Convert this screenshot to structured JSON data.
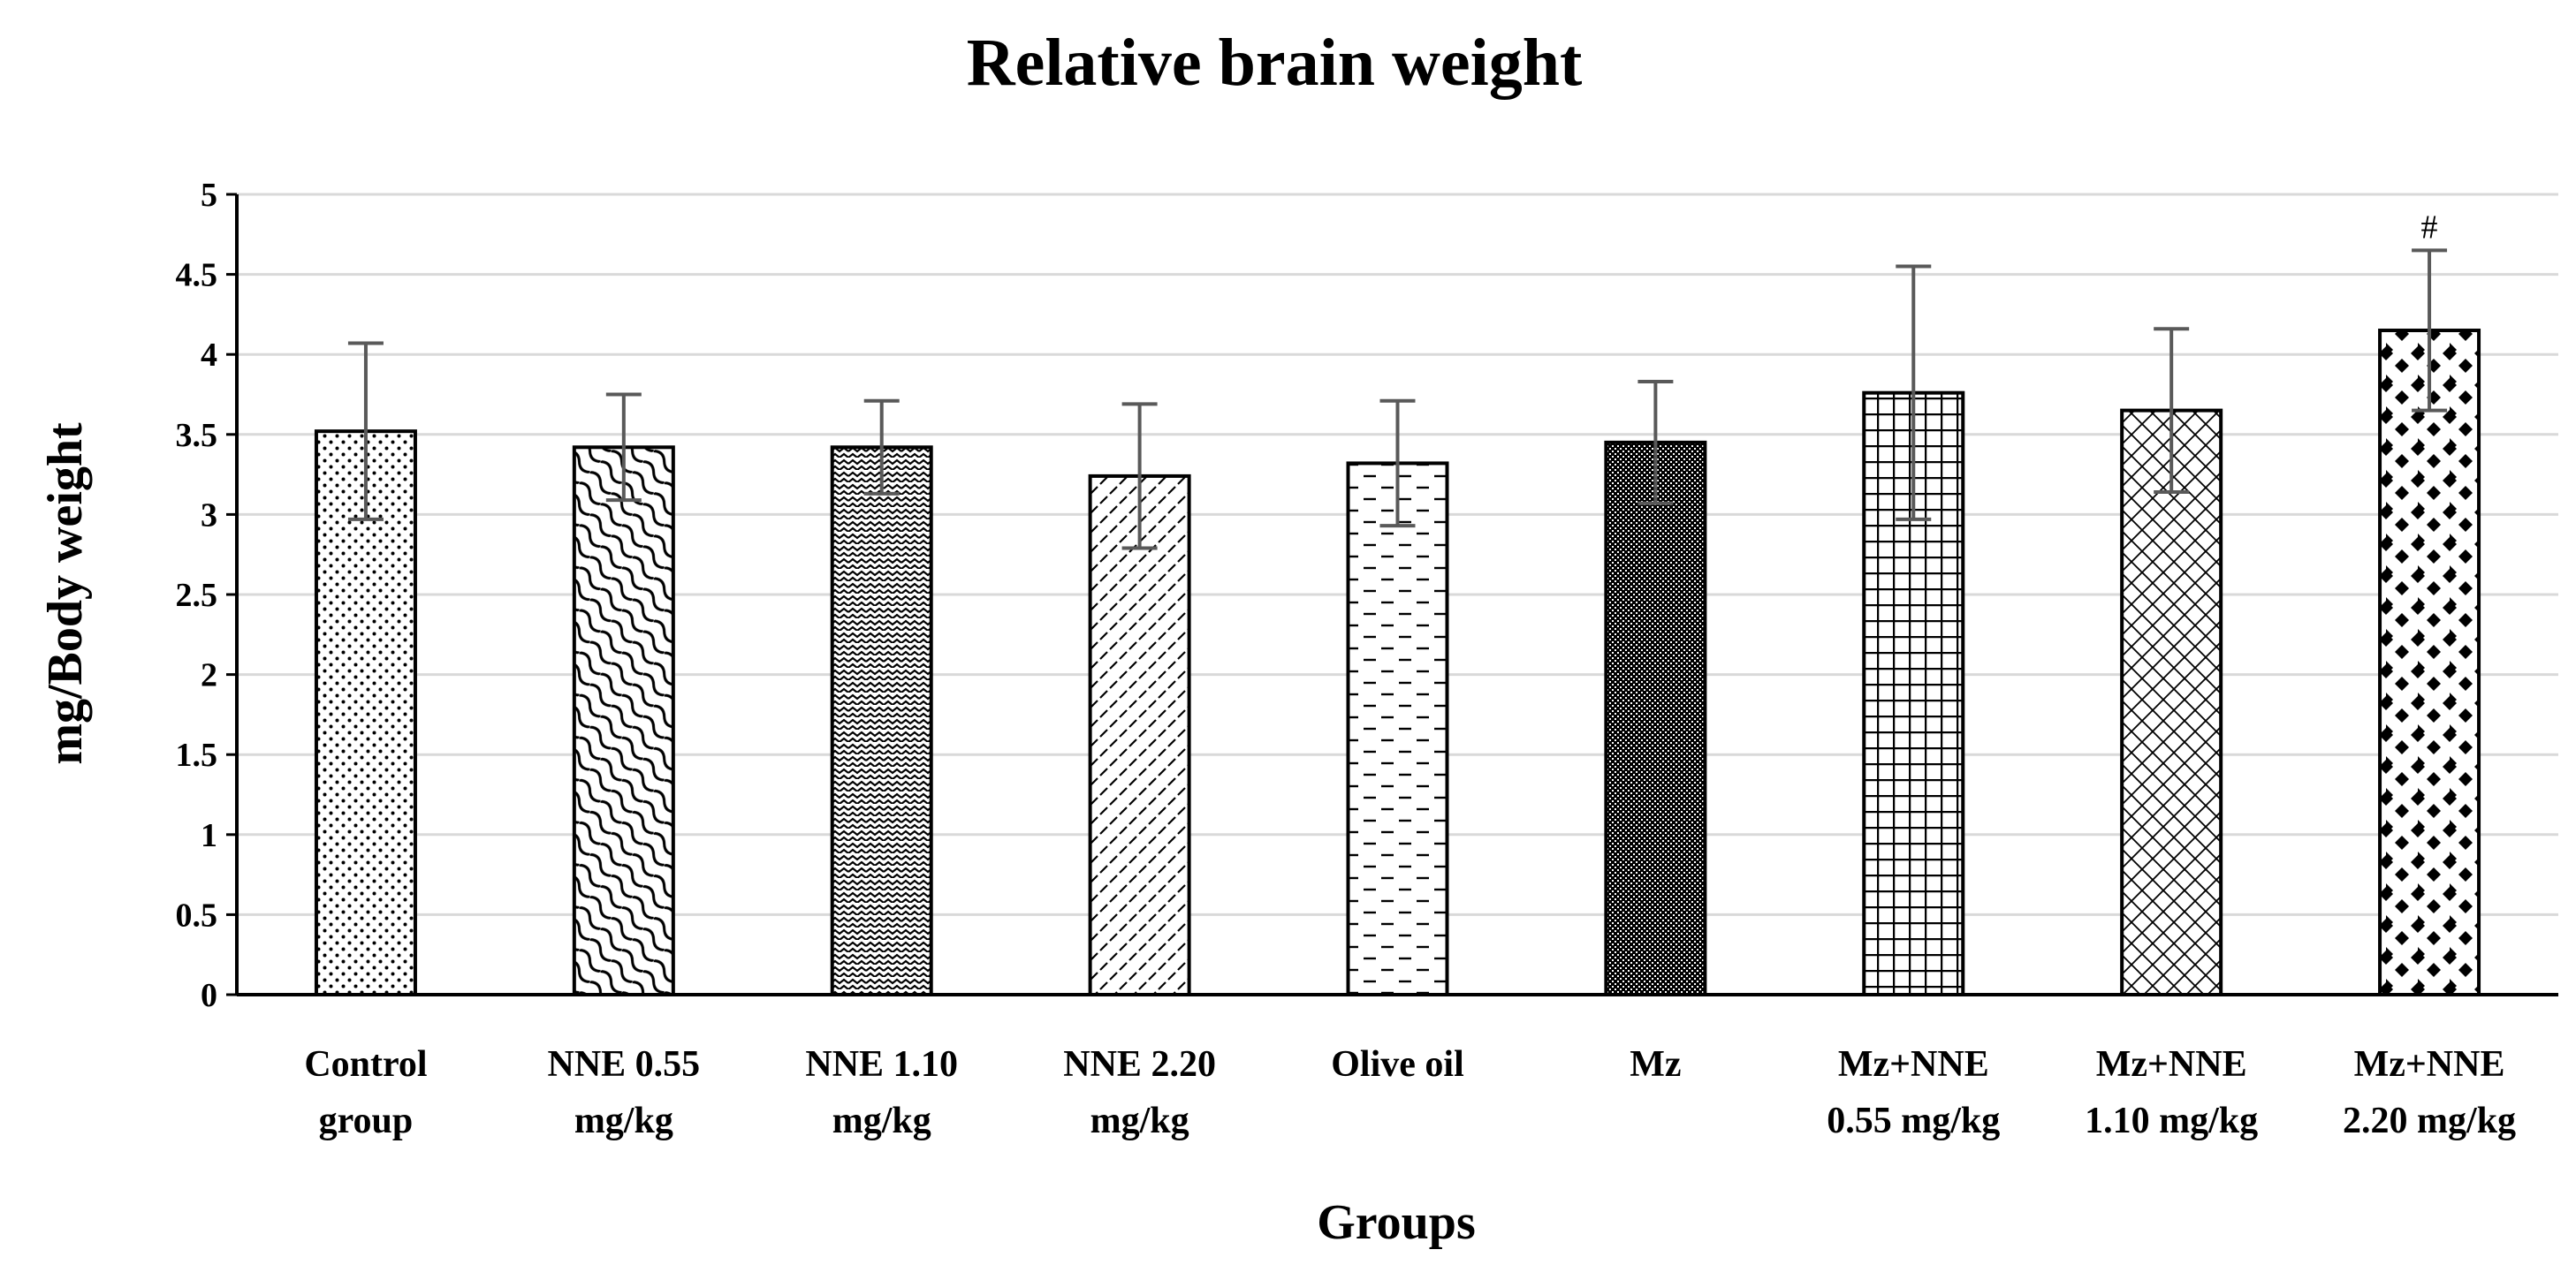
{
  "chart_data": {
    "type": "bar",
    "title": "Relative brain weight",
    "xlabel": "Groups",
    "ylabel": "mg/Body weight",
    "ylim": [
      0,
      5
    ],
    "yticks": [
      0,
      0.5,
      1,
      1.5,
      2,
      2.5,
      3,
      3.5,
      4,
      4.5,
      5
    ],
    "ytick_labels": [
      "0",
      "0.5",
      "1",
      "1.5",
      "2",
      "2.5",
      "3",
      "3.5",
      "4",
      "4.5",
      "5"
    ],
    "grid": true,
    "categories": [
      [
        "Control",
        "group"
      ],
      [
        "NNE 0.55",
        "mg/kg"
      ],
      [
        "NNE 1.10",
        "mg/kg"
      ],
      [
        "NNE 2.20",
        "mg/kg"
      ],
      [
        "Olive oil"
      ],
      [
        "Mz"
      ],
      [
        "Mz+NNE",
        "0.55 mg/kg"
      ],
      [
        "Mz+NNE",
        "1.10 mg/kg"
      ],
      [
        "Mz+NNE",
        "2.20 mg/kg"
      ]
    ],
    "values": [
      3.52,
      3.42,
      3.42,
      3.24,
      3.32,
      3.45,
      3.76,
      3.65,
      4.15
    ],
    "errors": [
      0.55,
      0.33,
      0.29,
      0.45,
      0.39,
      0.38,
      0.79,
      0.51,
      0.5
    ],
    "patterns": [
      "dots",
      "waves-diagonal",
      "waves",
      "diagonal-dashes",
      "horizontal-dashes",
      "dense",
      "grid",
      "crosshatch",
      "diamonds"
    ],
    "annotations": [
      {
        "category_index": 8,
        "text": "#"
      }
    ],
    "colors": {
      "bar_stroke": "#000000",
      "error_bar": "#595959",
      "grid": "#d9d9d9",
      "axis": "#000000"
    }
  }
}
